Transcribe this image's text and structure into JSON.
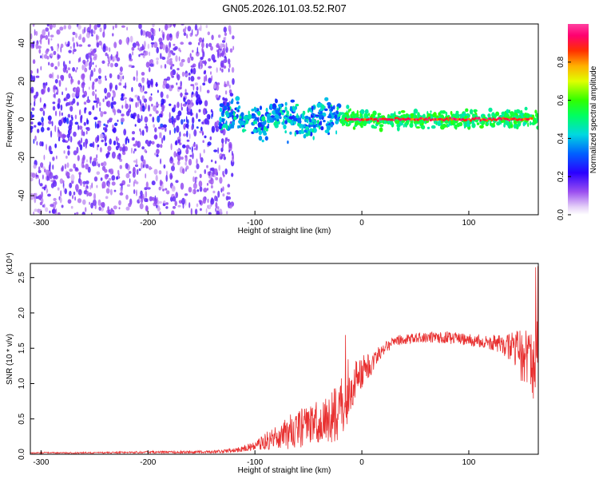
{
  "title": "GN05.2026.101.03.52.R07",
  "colors": {
    "signal": "#e83030",
    "bg": "#ffffff",
    "axis": "#000000"
  },
  "chart_data": [
    {
      "type": "heatmap",
      "name": "spectrogram",
      "xlabel": "Height of straight line (km)",
      "ylabel": "Frequency (Hz)",
      "xlim": [
        -310,
        165
      ],
      "ylim": [
        -50,
        50
      ],
      "x_ticks": [
        -300,
        -200,
        -100,
        0,
        100
      ],
      "y_ticks": [
        -40,
        -20,
        0,
        20,
        40
      ],
      "colorbar": {
        "label": "Normalized spectral amplitude",
        "range": [
          0,
          1
        ],
        "ticks": [
          "0.0",
          "0.2",
          "0.4",
          "0.6",
          "0.8"
        ],
        "tick_values": [
          0,
          0.2,
          0.4,
          0.6,
          0.8
        ]
      },
      "features": {
        "noise_region_x": [
          -310,
          -120
        ],
        "tone_frequency_hz": 0,
        "strong_tone_x": [
          -15,
          160
        ]
      }
    },
    {
      "type": "line",
      "name": "snr",
      "xlabel": "Height of straight line (km)",
      "ylabel": "SNR (10 * v/v)",
      "scale_label": "(x10⁴)",
      "xlim": [
        -310,
        165
      ],
      "ylim": [
        0,
        2.7
      ],
      "x_ticks": [
        -300,
        -200,
        -100,
        0,
        100
      ],
      "y_ticks": [
        "0.0",
        "0.5",
        "1.0",
        "1.5",
        "2.0",
        "2.5"
      ],
      "y_tick_values": [
        0,
        0.5,
        1.0,
        1.5,
        2.0,
        2.5
      ],
      "series": [
        {
          "name": "SNR",
          "color": "#e83030",
          "x": [
            -310,
            -250,
            -200,
            -150,
            -120,
            -100,
            -80,
            -60,
            -40,
            -30,
            -20,
            -15,
            -10,
            -5,
            0,
            10,
            20,
            30,
            50,
            75,
            100,
            120,
            140,
            150,
            160,
            165
          ],
          "mean": [
            0.02,
            0.02,
            0.03,
            0.03,
            0.05,
            0.12,
            0.25,
            0.35,
            0.45,
            0.5,
            0.6,
            0.8,
            1.0,
            1.1,
            1.15,
            1.3,
            1.5,
            1.6,
            1.65,
            1.66,
            1.62,
            1.58,
            1.52,
            1.4,
            1.3,
            1.2
          ],
          "noise": [
            0.01,
            0.01,
            0.015,
            0.02,
            0.03,
            0.06,
            0.18,
            0.28,
            0.32,
            0.35,
            0.45,
            0.55,
            0.4,
            0.3,
            0.25,
            0.15,
            0.1,
            0.08,
            0.07,
            0.09,
            0.08,
            0.1,
            0.2,
            0.4,
            0.6,
            0.7
          ]
        }
      ]
    }
  ]
}
